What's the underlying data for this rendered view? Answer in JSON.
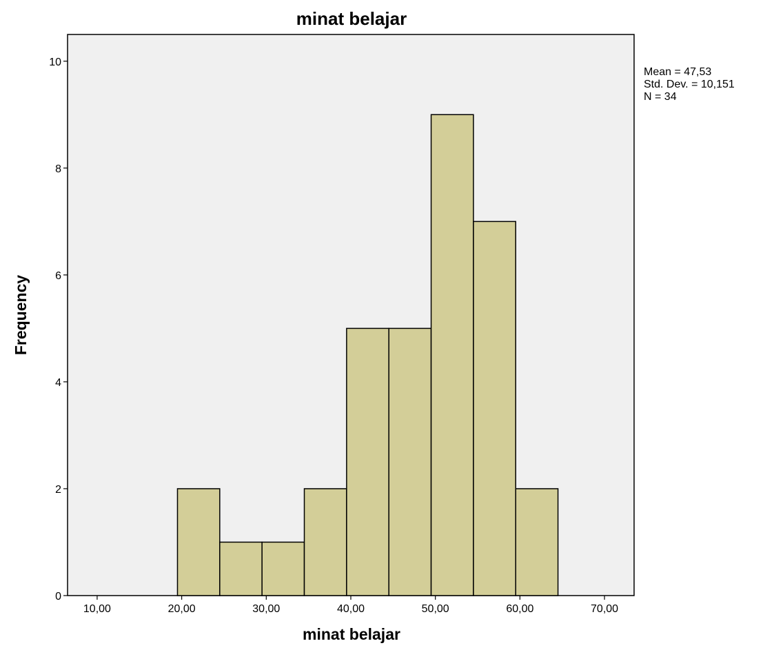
{
  "chart_data": {
    "type": "bar",
    "title": "minat belajar",
    "xlabel": "minat belajar",
    "ylabel": "Frequency",
    "bin_edges": [
      19.5,
      24.5,
      29.5,
      34.5,
      39.5,
      44.5,
      49.5,
      54.5,
      59.5,
      64.5
    ],
    "values": [
      2,
      1,
      1,
      2,
      5,
      5,
      9,
      7,
      2
    ],
    "xlim": [
      6.5,
      73.5
    ],
    "ylim": [
      0,
      10.5
    ],
    "x_ticks": [
      10,
      20,
      30,
      40,
      50,
      60,
      70
    ],
    "x_tick_labels": [
      "10,00",
      "20,00",
      "30,00",
      "40,00",
      "50,00",
      "60,00",
      "70,00"
    ],
    "y_ticks": [
      0,
      2,
      4,
      6,
      8,
      10
    ],
    "y_tick_labels": [
      "0",
      "2",
      "4",
      "6",
      "8",
      "10"
    ],
    "grid": false,
    "legend": "none",
    "stats": {
      "mean": "Mean = 47,53",
      "std_dev": "Std. Dev. = 10,151",
      "n": "N = 34"
    },
    "colors": {
      "bar_fill": "#d3ce98",
      "bar_stroke": "#000000",
      "plot_background": "#f0f0f0"
    }
  }
}
